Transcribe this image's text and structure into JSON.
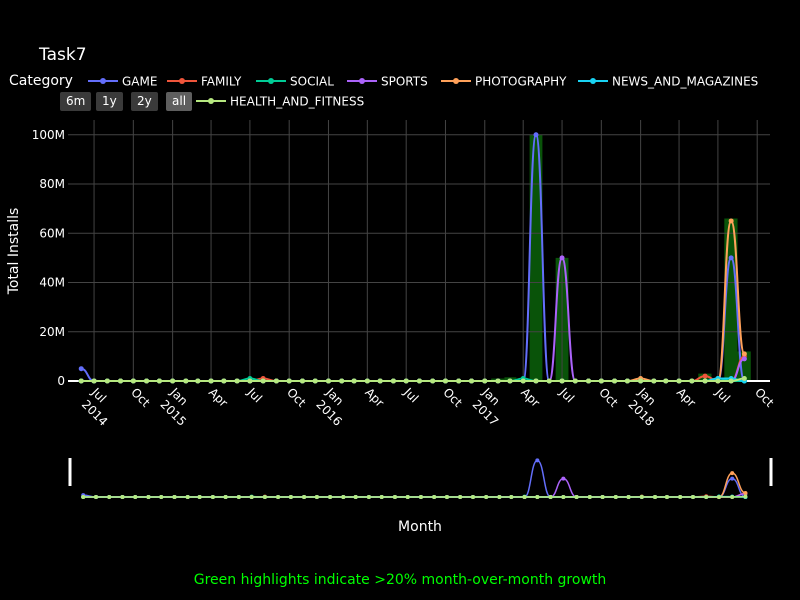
{
  "chart_data": {
    "type": "line",
    "title": "Task7",
    "xlabel": "Month",
    "ylabel": "Total Installs",
    "legend_title": "Category",
    "legend_position": "top",
    "grid": true,
    "ylim": [
      0,
      106000000
    ],
    "xlim": [
      "2014-05-01",
      "2018-10-31"
    ],
    "y_ticks": [
      {
        "value": 0,
        "label": "0"
      },
      {
        "value": 20000000,
        "label": "20M"
      },
      {
        "value": 40000000,
        "label": "40M"
      },
      {
        "value": 60000000,
        "label": "60M"
      },
      {
        "value": 80000000,
        "label": "80M"
      },
      {
        "value": 100000000,
        "label": "100M"
      }
    ],
    "x_ticks": [
      {
        "date": "2014-07-01",
        "label": "Jul",
        "label2": "2014"
      },
      {
        "date": "2014-10-01",
        "label": "Oct"
      },
      {
        "date": "2015-01-01",
        "label": "Jan",
        "label2": "2015"
      },
      {
        "date": "2015-04-01",
        "label": "Apr"
      },
      {
        "date": "2015-07-01",
        "label": "Jul"
      },
      {
        "date": "2015-10-01",
        "label": "Oct"
      },
      {
        "date": "2016-01-01",
        "label": "Jan",
        "label2": "2016"
      },
      {
        "date": "2016-04-01",
        "label": "Apr"
      },
      {
        "date": "2016-07-01",
        "label": "Jul"
      },
      {
        "date": "2016-10-01",
        "label": "Oct"
      },
      {
        "date": "2017-01-01",
        "label": "Jan",
        "label2": "2017"
      },
      {
        "date": "2017-04-01",
        "label": "Apr"
      },
      {
        "date": "2017-07-01",
        "label": "Jul"
      },
      {
        "date": "2017-10-01",
        "label": "Oct"
      },
      {
        "date": "2018-01-01",
        "label": "Jan",
        "label2": "2018"
      },
      {
        "date": "2018-04-01",
        "label": "Apr"
      },
      {
        "date": "2018-07-01",
        "label": "Jul"
      },
      {
        "date": "2018-10-01",
        "label": "Oct"
      }
    ],
    "series": [
      {
        "name": "GAME",
        "color": "#636efa",
        "points": [
          [
            "2014-06-01",
            5000000
          ],
          [
            "2017-05-01",
            100000000
          ],
          [
            "2018-08-01",
            50000000
          ]
        ]
      },
      {
        "name": "FAMILY",
        "color": "#ef553b",
        "points": [
          [
            "2015-08-01",
            1000000
          ],
          [
            "2018-06-01",
            2000000
          ],
          [
            "2018-09-01",
            10000000
          ]
        ]
      },
      {
        "name": "SOCIAL",
        "color": "#00cc96",
        "points": [
          [
            "2015-07-01",
            1000000
          ],
          [
            "2017-04-01",
            1000000
          ],
          [
            "2018-07-01",
            1000000
          ]
        ]
      },
      {
        "name": "SPORTS",
        "color": "#ab63fa",
        "points": [
          [
            "2017-07-01",
            50000000
          ],
          [
            "2018-09-01",
            9000000
          ]
        ]
      },
      {
        "name": "PHOTOGRAPHY",
        "color": "#ffa15a",
        "points": [
          [
            "2018-01-01",
            1000000
          ],
          [
            "2018-08-01",
            65000000
          ],
          [
            "2018-09-01",
            11000000
          ]
        ]
      },
      {
        "name": "NEWS_AND_MAGAZINES",
        "color": "#19d3f3",
        "points": [
          [
            "2018-07-01",
            1000000
          ],
          [
            "2018-08-01",
            1000000
          ]
        ]
      },
      {
        "name": "HEALTH_AND_FITNESS",
        "color": "#b6e880",
        "points": [
          [
            "2014-06-01",
            0
          ],
          [
            "2018-09-01",
            1000000
          ]
        ]
      }
    ],
    "growth_highlights": [
      {
        "date": "2015-08-01",
        "value": 1000000
      },
      {
        "date": "2017-02-01",
        "value": 1000000
      },
      {
        "date": "2017-03-01",
        "value": 1500000
      },
      {
        "date": "2017-05-01",
        "value": 100000000
      },
      {
        "date": "2017-07-01",
        "value": 50000000
      },
      {
        "date": "2018-01-01",
        "value": 1000000
      },
      {
        "date": "2018-06-01",
        "value": 3000000
      },
      {
        "date": "2018-08-01",
        "value": 66000000
      },
      {
        "date": "2018-09-01",
        "value": 12000000
      }
    ],
    "annotation": "Green highlights indicate >20% month-over-month growth",
    "range_selector": [
      "6m",
      "1y",
      "2y",
      "all"
    ],
    "range_selector_active": "all"
  },
  "accent_color": "#00ff00"
}
